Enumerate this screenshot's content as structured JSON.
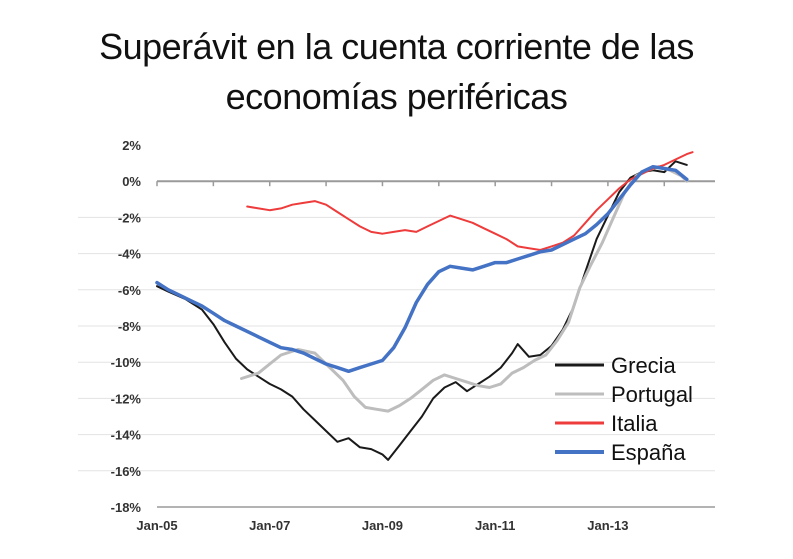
{
  "title_lines": [
    "Superávit en la cuenta corriente de las",
    "economías periféricas"
  ],
  "chart_data": {
    "type": "line",
    "title": "Superávit en la cuenta corriente de las economías periféricas",
    "xlabel": "",
    "ylabel": "",
    "x_tick_labels": [
      "Jan-05",
      "Jan-07",
      "Jan-09",
      "Jan-11",
      "Jan-13"
    ],
    "y_tick_labels": [
      "2%",
      "0%",
      "-2%",
      "-4%",
      "-6%",
      "-8%",
      "-10%",
      "-12%",
      "-14%",
      "-16%",
      "-18%"
    ],
    "ylim": [
      -18,
      2
    ],
    "xlim": [
      2005.0,
      2014.9
    ],
    "grid": "horizontal",
    "legend_position": "bottom-right",
    "series": [
      {
        "name": "Grecia",
        "color": "#1a1a1a",
        "points": [
          [
            2005.0,
            -5.8
          ],
          [
            2005.2,
            -6.1
          ],
          [
            2005.5,
            -6.5
          ],
          [
            2005.8,
            -7.1
          ],
          [
            2006.0,
            -7.9
          ],
          [
            2006.2,
            -8.9
          ],
          [
            2006.4,
            -9.8
          ],
          [
            2006.6,
            -10.4
          ],
          [
            2006.8,
            -10.8
          ],
          [
            2007.0,
            -11.2
          ],
          [
            2007.2,
            -11.5
          ],
          [
            2007.4,
            -11.9
          ],
          [
            2007.6,
            -12.6
          ],
          [
            2007.8,
            -13.2
          ],
          [
            2008.0,
            -13.8
          ],
          [
            2008.2,
            -14.4
          ],
          [
            2008.4,
            -14.2
          ],
          [
            2008.6,
            -14.7
          ],
          [
            2008.8,
            -14.8
          ],
          [
            2009.0,
            -15.1
          ],
          [
            2009.1,
            -15.4
          ],
          [
            2009.3,
            -14.6
          ],
          [
            2009.5,
            -13.8
          ],
          [
            2009.7,
            -13.0
          ],
          [
            2009.9,
            -12.0
          ],
          [
            2010.1,
            -11.4
          ],
          [
            2010.3,
            -11.1
          ],
          [
            2010.5,
            -11.6
          ],
          [
            2010.7,
            -11.2
          ],
          [
            2010.9,
            -10.8
          ],
          [
            2011.1,
            -10.3
          ],
          [
            2011.3,
            -9.5
          ],
          [
            2011.4,
            -9.0
          ],
          [
            2011.6,
            -9.7
          ],
          [
            2011.8,
            -9.6
          ],
          [
            2012.0,
            -9.1
          ],
          [
            2012.2,
            -8.2
          ],
          [
            2012.4,
            -6.9
          ],
          [
            2012.6,
            -5.0
          ],
          [
            2012.8,
            -3.2
          ],
          [
            2013.0,
            -1.9
          ],
          [
            2013.2,
            -0.6
          ],
          [
            2013.4,
            0.2
          ],
          [
            2013.6,
            0.5
          ],
          [
            2013.8,
            0.6
          ],
          [
            2014.0,
            0.5
          ],
          [
            2014.2,
            1.1
          ],
          [
            2014.4,
            0.9
          ]
        ]
      },
      {
        "name": "Portugal",
        "color": "#bdbdbd",
        "points": [
          [
            2006.5,
            -10.9
          ],
          [
            2006.8,
            -10.6
          ],
          [
            2007.0,
            -10.1
          ],
          [
            2007.2,
            -9.6
          ],
          [
            2007.5,
            -9.3
          ],
          [
            2007.8,
            -9.5
          ],
          [
            2008.0,
            -10.1
          ],
          [
            2008.3,
            -11.0
          ],
          [
            2008.5,
            -11.9
          ],
          [
            2008.7,
            -12.5
          ],
          [
            2008.9,
            -12.6
          ],
          [
            2009.1,
            -12.7
          ],
          [
            2009.3,
            -12.4
          ],
          [
            2009.5,
            -12.0
          ],
          [
            2009.7,
            -11.5
          ],
          [
            2009.9,
            -11.0
          ],
          [
            2010.1,
            -10.7
          ],
          [
            2010.3,
            -10.9
          ],
          [
            2010.5,
            -11.1
          ],
          [
            2010.7,
            -11.3
          ],
          [
            2010.9,
            -11.4
          ],
          [
            2011.1,
            -11.2
          ],
          [
            2011.3,
            -10.6
          ],
          [
            2011.5,
            -10.3
          ],
          [
            2011.7,
            -9.9
          ],
          [
            2011.9,
            -9.6
          ],
          [
            2012.1,
            -8.8
          ],
          [
            2012.3,
            -7.8
          ],
          [
            2012.5,
            -5.9
          ],
          [
            2012.7,
            -4.6
          ],
          [
            2012.9,
            -3.4
          ],
          [
            2013.1,
            -2.0
          ],
          [
            2013.3,
            -0.6
          ],
          [
            2013.5,
            0.3
          ],
          [
            2013.7,
            0.6
          ],
          [
            2013.9,
            0.8
          ],
          [
            2014.1,
            0.6
          ],
          [
            2014.3,
            0.3
          ],
          [
            2014.4,
            0.0
          ]
        ]
      },
      {
        "name": "Italia",
        "color": "#ee3b3b",
        "points": [
          [
            2006.6,
            -1.4
          ],
          [
            2006.8,
            -1.5
          ],
          [
            2007.0,
            -1.6
          ],
          [
            2007.2,
            -1.5
          ],
          [
            2007.4,
            -1.3
          ],
          [
            2007.6,
            -1.2
          ],
          [
            2007.8,
            -1.1
          ],
          [
            2008.0,
            -1.3
          ],
          [
            2008.2,
            -1.7
          ],
          [
            2008.4,
            -2.1
          ],
          [
            2008.6,
            -2.5
          ],
          [
            2008.8,
            -2.8
          ],
          [
            2009.0,
            -2.9
          ],
          [
            2009.2,
            -2.8
          ],
          [
            2009.4,
            -2.7
          ],
          [
            2009.6,
            -2.8
          ],
          [
            2009.8,
            -2.5
          ],
          [
            2010.0,
            -2.2
          ],
          [
            2010.2,
            -1.9
          ],
          [
            2010.4,
            -2.1
          ],
          [
            2010.6,
            -2.3
          ],
          [
            2010.8,
            -2.6
          ],
          [
            2011.0,
            -2.9
          ],
          [
            2011.2,
            -3.2
          ],
          [
            2011.4,
            -3.6
          ],
          [
            2011.6,
            -3.7
          ],
          [
            2011.8,
            -3.8
          ],
          [
            2012.0,
            -3.6
          ],
          [
            2012.2,
            -3.4
          ],
          [
            2012.4,
            -3.0
          ],
          [
            2012.6,
            -2.3
          ],
          [
            2012.8,
            -1.6
          ],
          [
            2013.0,
            -1.0
          ],
          [
            2013.2,
            -0.4
          ],
          [
            2013.4,
            0.1
          ],
          [
            2013.6,
            0.4
          ],
          [
            2013.8,
            0.7
          ],
          [
            2014.0,
            0.9
          ],
          [
            2014.2,
            1.2
          ],
          [
            2014.4,
            1.5
          ],
          [
            2014.5,
            1.6
          ]
        ]
      },
      {
        "name": "España",
        "color": "#4472c4",
        "points": [
          [
            2005.0,
            -5.6
          ],
          [
            2005.2,
            -6.0
          ],
          [
            2005.4,
            -6.3
          ],
          [
            2005.6,
            -6.6
          ],
          [
            2005.8,
            -6.9
          ],
          [
            2006.0,
            -7.3
          ],
          [
            2006.2,
            -7.7
          ],
          [
            2006.4,
            -8.0
          ],
          [
            2006.6,
            -8.3
          ],
          [
            2006.8,
            -8.6
          ],
          [
            2007.0,
            -8.9
          ],
          [
            2007.2,
            -9.2
          ],
          [
            2007.4,
            -9.3
          ],
          [
            2007.6,
            -9.5
          ],
          [
            2007.8,
            -9.8
          ],
          [
            2008.0,
            -10.1
          ],
          [
            2008.2,
            -10.3
          ],
          [
            2008.4,
            -10.5
          ],
          [
            2008.6,
            -10.3
          ],
          [
            2008.8,
            -10.1
          ],
          [
            2009.0,
            -9.9
          ],
          [
            2009.2,
            -9.2
          ],
          [
            2009.4,
            -8.1
          ],
          [
            2009.6,
            -6.7
          ],
          [
            2009.8,
            -5.7
          ],
          [
            2010.0,
            -5.0
          ],
          [
            2010.2,
            -4.7
          ],
          [
            2010.4,
            -4.8
          ],
          [
            2010.6,
            -4.9
          ],
          [
            2010.8,
            -4.7
          ],
          [
            2011.0,
            -4.5
          ],
          [
            2011.2,
            -4.5
          ],
          [
            2011.4,
            -4.3
          ],
          [
            2011.6,
            -4.1
          ],
          [
            2011.8,
            -3.9
          ],
          [
            2012.0,
            -3.8
          ],
          [
            2012.2,
            -3.5
          ],
          [
            2012.4,
            -3.2
          ],
          [
            2012.6,
            -2.9
          ],
          [
            2012.8,
            -2.4
          ],
          [
            2013.0,
            -1.8
          ],
          [
            2013.2,
            -1.0
          ],
          [
            2013.4,
            -0.2
          ],
          [
            2013.6,
            0.5
          ],
          [
            2013.8,
            0.8
          ],
          [
            2014.0,
            0.7
          ],
          [
            2014.2,
            0.6
          ],
          [
            2014.4,
            0.1
          ]
        ]
      }
    ]
  }
}
